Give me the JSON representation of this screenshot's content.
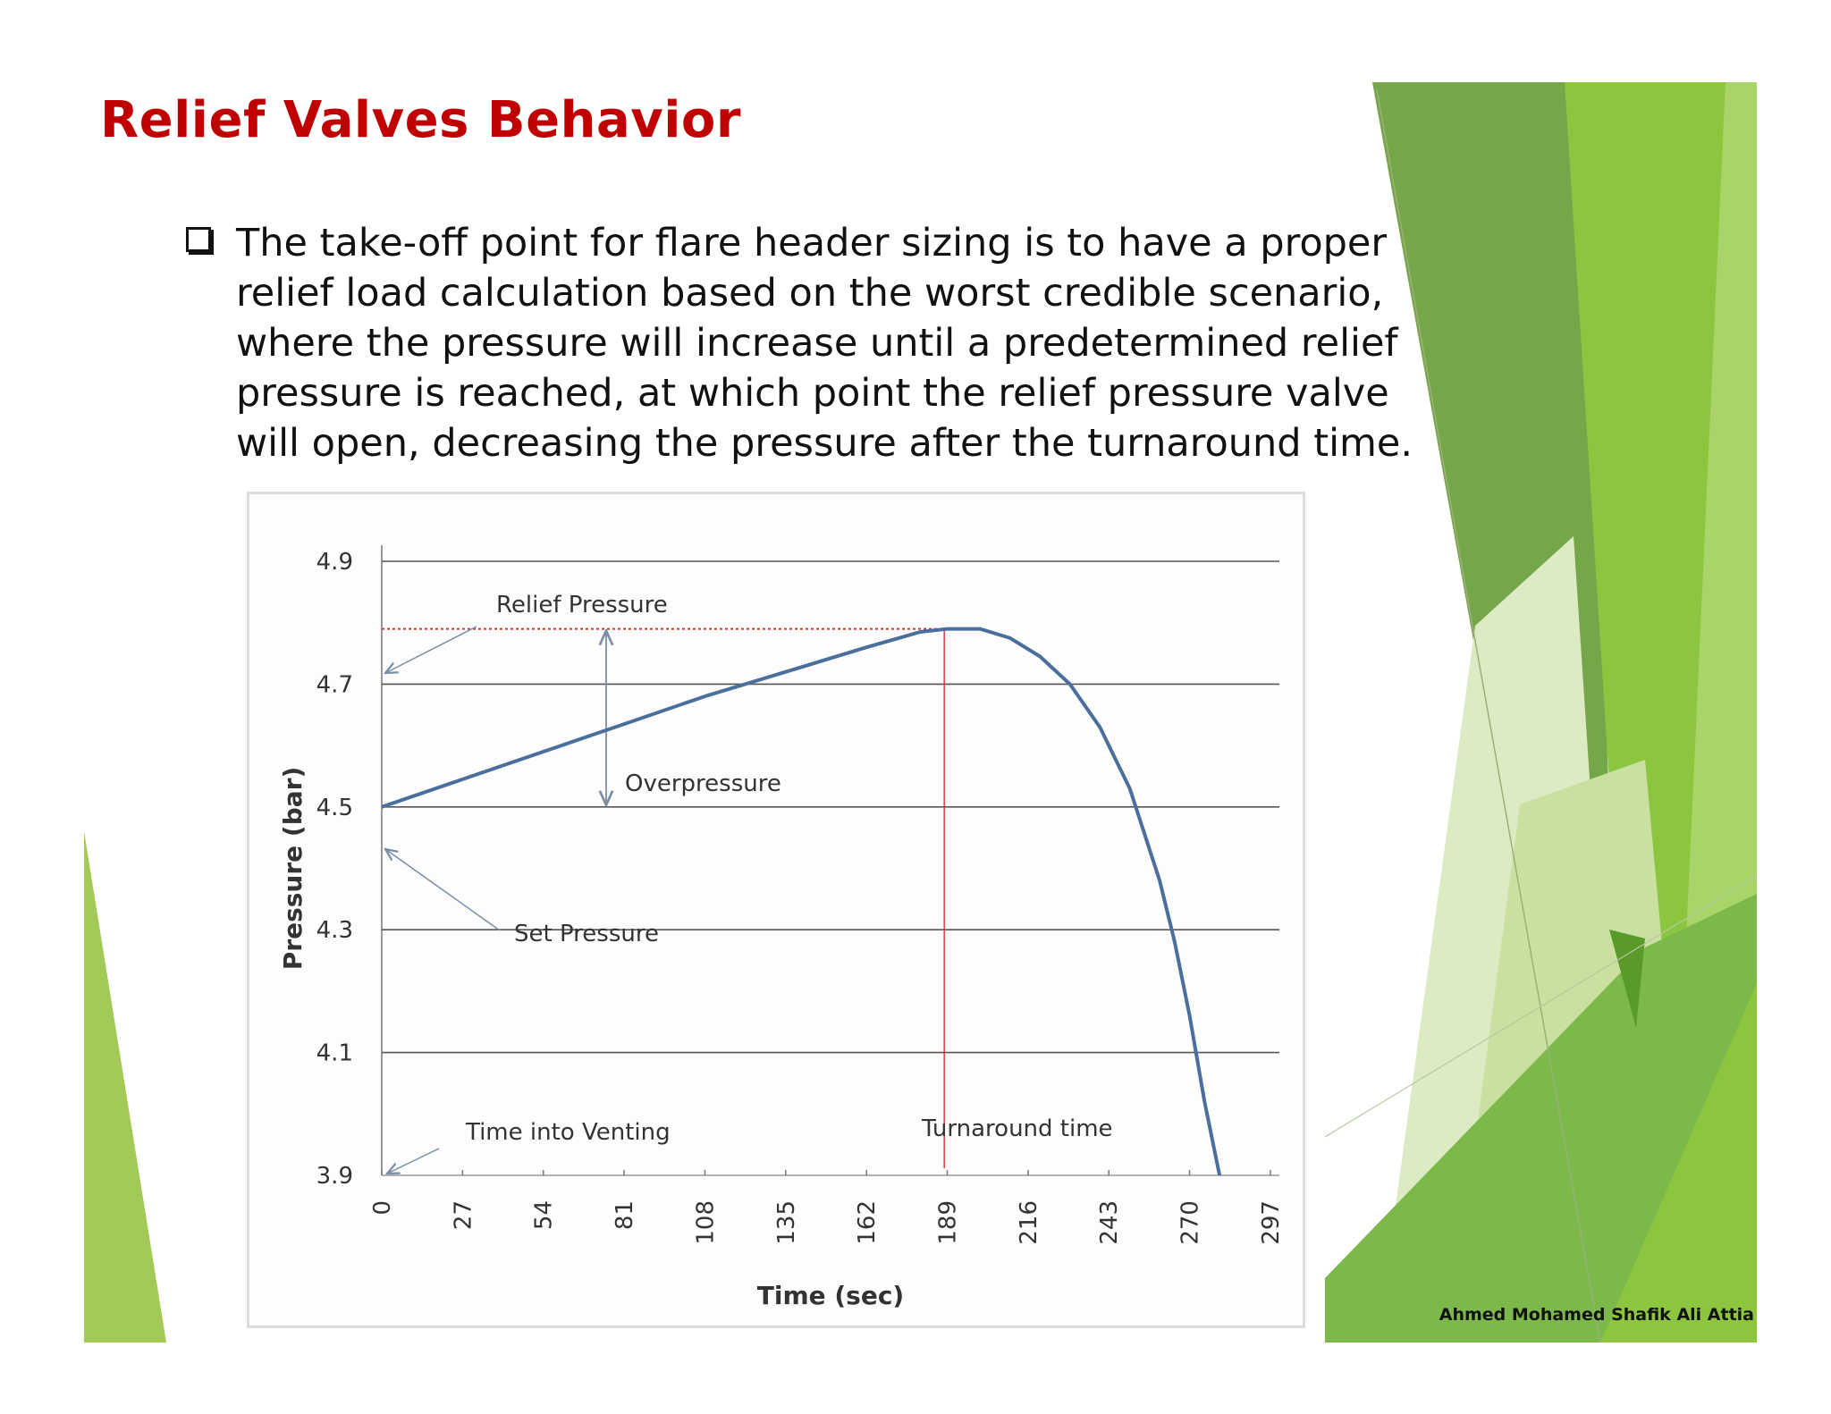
{
  "slide": {
    "title": "Relief Valves Behavior",
    "bullet": "The take-off point for flare header sizing is to have a proper\nrelief load calculation based on the worst credible scenario,\nwhere the pressure will increase until a predetermined relief\npressure is reached, at which point the relief pressure valve\nwill open, decreasing the pressure after the turnaround time.",
    "author": "Ahmed Mohamed Shafik Ali Attia",
    "colors": {
      "title": "#c00000",
      "curve": "#4a6f9c",
      "relief_line": "#e03030",
      "grid": "#555555",
      "green_dark": "#76a64a",
      "green_mid": "#8cc63f",
      "green_light": "#c9e0a0"
    }
  },
  "chart_data": {
    "type": "line",
    "xlabel": "Time (sec)",
    "ylabel": "Pressure (bar)",
    "ylim": [
      3.9,
      4.9
    ],
    "xlim": [
      0,
      300
    ],
    "yticks": [
      "4.9",
      "4.7",
      "4.5",
      "4.3",
      "4.1",
      "3.9"
    ],
    "ytick_values": [
      4.9,
      4.7,
      4.5,
      4.3,
      4.1,
      3.9
    ],
    "xticks": [
      "0",
      "27",
      "54",
      "81",
      "108",
      "135",
      "162",
      "189",
      "216",
      "243",
      "270",
      "297"
    ],
    "xtick_values": [
      0,
      27,
      54,
      81,
      108,
      135,
      162,
      189,
      216,
      243,
      270,
      297
    ],
    "grid": true,
    "series": [
      {
        "x": [
          0,
          27,
          54,
          81,
          108,
          135,
          162,
          180,
          189,
          200,
          210,
          220,
          230,
          240,
          250,
          260,
          265,
          270,
          275,
          280
        ],
        "y": [
          4.5,
          4.545,
          4.59,
          4.635,
          4.68,
          4.72,
          4.76,
          4.785,
          4.79,
          4.79,
          4.775,
          4.745,
          4.7,
          4.63,
          4.53,
          4.38,
          4.28,
          4.16,
          4.02,
          3.9
        ]
      }
    ],
    "relief_pressure": 4.79,
    "turnaround_time": 188,
    "overpressure_range": [
      4.5,
      4.79
    ],
    "overpressure_x": 75,
    "annotations": {
      "relief": "Relief Pressure",
      "overpressure": "Overpressure",
      "set": "Set Pressure",
      "venting": "Time into Venting",
      "turnaround": "Turnaround time"
    }
  }
}
